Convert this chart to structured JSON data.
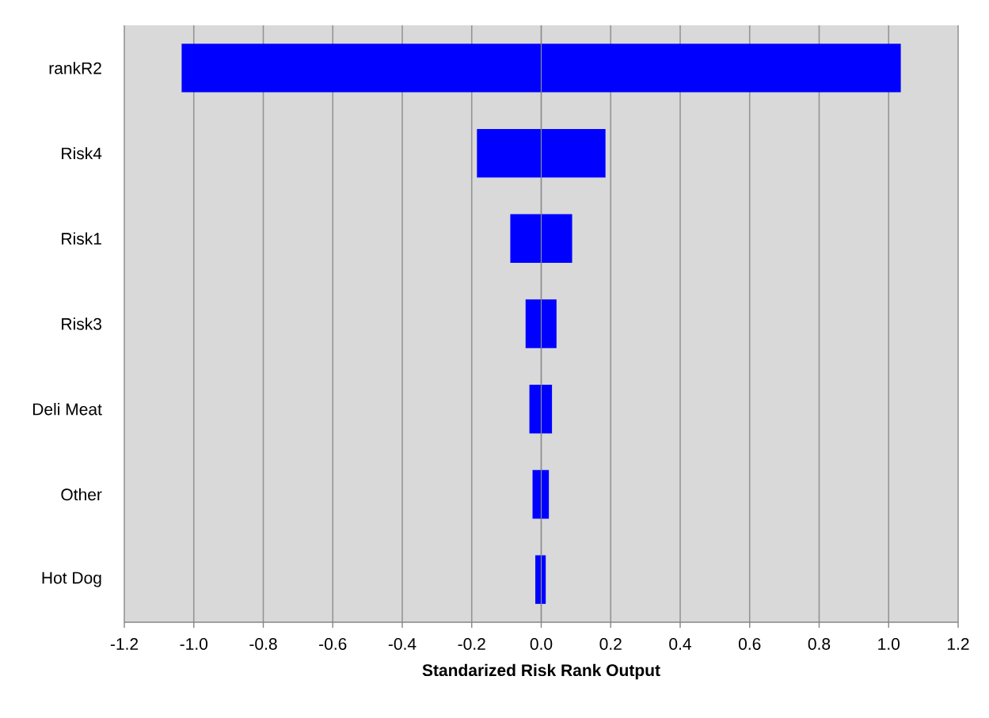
{
  "chart_data": {
    "type": "bar",
    "orientation": "horizontal",
    "xlabel": "Standarized Risk Rank Output",
    "categories": [
      "rankR2",
      "Risk4",
      "Risk1",
      "Risk3",
      "Deli Meat",
      "Other",
      "Hot Dog"
    ],
    "base": [
      -1.035,
      -0.185,
      -0.089,
      -0.045,
      -0.034,
      -0.025,
      -0.017
    ],
    "values": [
      2.07,
      0.37,
      0.178,
      0.089,
      0.065,
      0.047,
      0.03
    ],
    "color": "#0000ff",
    "xlim": [
      -1.2,
      1.2
    ],
    "xticks": [
      -1.2,
      {
        "value": -1,
        "label": "-1.0"
      },
      -0.8,
      -0.6,
      -0.4,
      -0.2,
      {
        "value": 0,
        "label": "0.0"
      },
      0.2,
      0.4,
      0.6,
      0.8,
      {
        "value": 1,
        "label": "1.0"
      },
      1.2
    ],
    "grid": "x"
  }
}
